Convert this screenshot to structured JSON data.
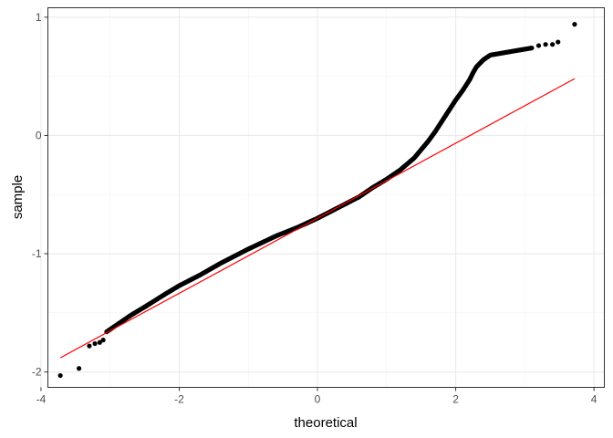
{
  "chart_data": {
    "type": "scatter",
    "subtype": "qq-plot",
    "title": "",
    "xlabel": "theoretical",
    "ylabel": "sample",
    "xlim": [
      -3.9,
      4.15
    ],
    "ylim": [
      -2.13,
      1.08
    ],
    "x_major_ticks": [
      -4,
      -2,
      0,
      2,
      4
    ],
    "x_minor_ticks": [
      -3,
      -1,
      1,
      3
    ],
    "y_major_ticks": [
      -2,
      -1,
      0,
      1
    ],
    "y_minor_ticks": [
      -1.5,
      -0.5,
      0.5
    ],
    "x_tick_labels": [
      "-4",
      "-2",
      "0",
      "2",
      "4"
    ],
    "y_tick_labels": [
      "-2",
      "-1",
      "0",
      "1"
    ],
    "grid": true,
    "theme": "bw",
    "point_color": "#000000",
    "line_color": "#ff0000",
    "reference_line": {
      "x": [
        -3.72,
        3.72
      ],
      "y": [
        -1.88,
        0.48
      ]
    },
    "curve": {
      "x": [
        -3.05,
        -2.9,
        -2.7,
        -2.5,
        -2.2,
        -2.0,
        -1.7,
        -1.4,
        -1.0,
        -0.6,
        -0.3,
        0.0,
        0.3,
        0.6,
        0.8,
        1.0,
        1.2,
        1.4,
        1.5,
        1.6,
        1.7,
        1.8,
        1.9,
        2.0,
        2.1,
        2.2,
        2.25,
        2.3,
        2.35,
        2.4,
        2.5,
        2.6,
        2.7,
        2.8,
        2.9,
        3.0,
        3.1
      ],
      "y": [
        -1.66,
        -1.6,
        -1.52,
        -1.45,
        -1.34,
        -1.27,
        -1.18,
        -1.08,
        -0.96,
        -0.85,
        -0.78,
        -0.7,
        -0.61,
        -0.52,
        -0.44,
        -0.37,
        -0.29,
        -0.19,
        -0.12,
        -0.05,
        0.03,
        0.12,
        0.21,
        0.3,
        0.38,
        0.47,
        0.53,
        0.58,
        0.61,
        0.64,
        0.68,
        0.69,
        0.7,
        0.71,
        0.72,
        0.73,
        0.74
      ]
    },
    "tail_points": [
      {
        "x": -3.72,
        "y": -2.03
      },
      {
        "x": -3.45,
        "y": -1.97
      },
      {
        "x": -3.3,
        "y": -1.78
      },
      {
        "x": -3.22,
        "y": -1.76
      },
      {
        "x": -3.15,
        "y": -1.75
      },
      {
        "x": -3.1,
        "y": -1.73
      },
      {
        "x": 3.2,
        "y": 0.76
      },
      {
        "x": 3.3,
        "y": 0.77
      },
      {
        "x": 3.4,
        "y": 0.77
      },
      {
        "x": 3.48,
        "y": 0.79
      },
      {
        "x": 3.72,
        "y": 0.94
      }
    ]
  }
}
